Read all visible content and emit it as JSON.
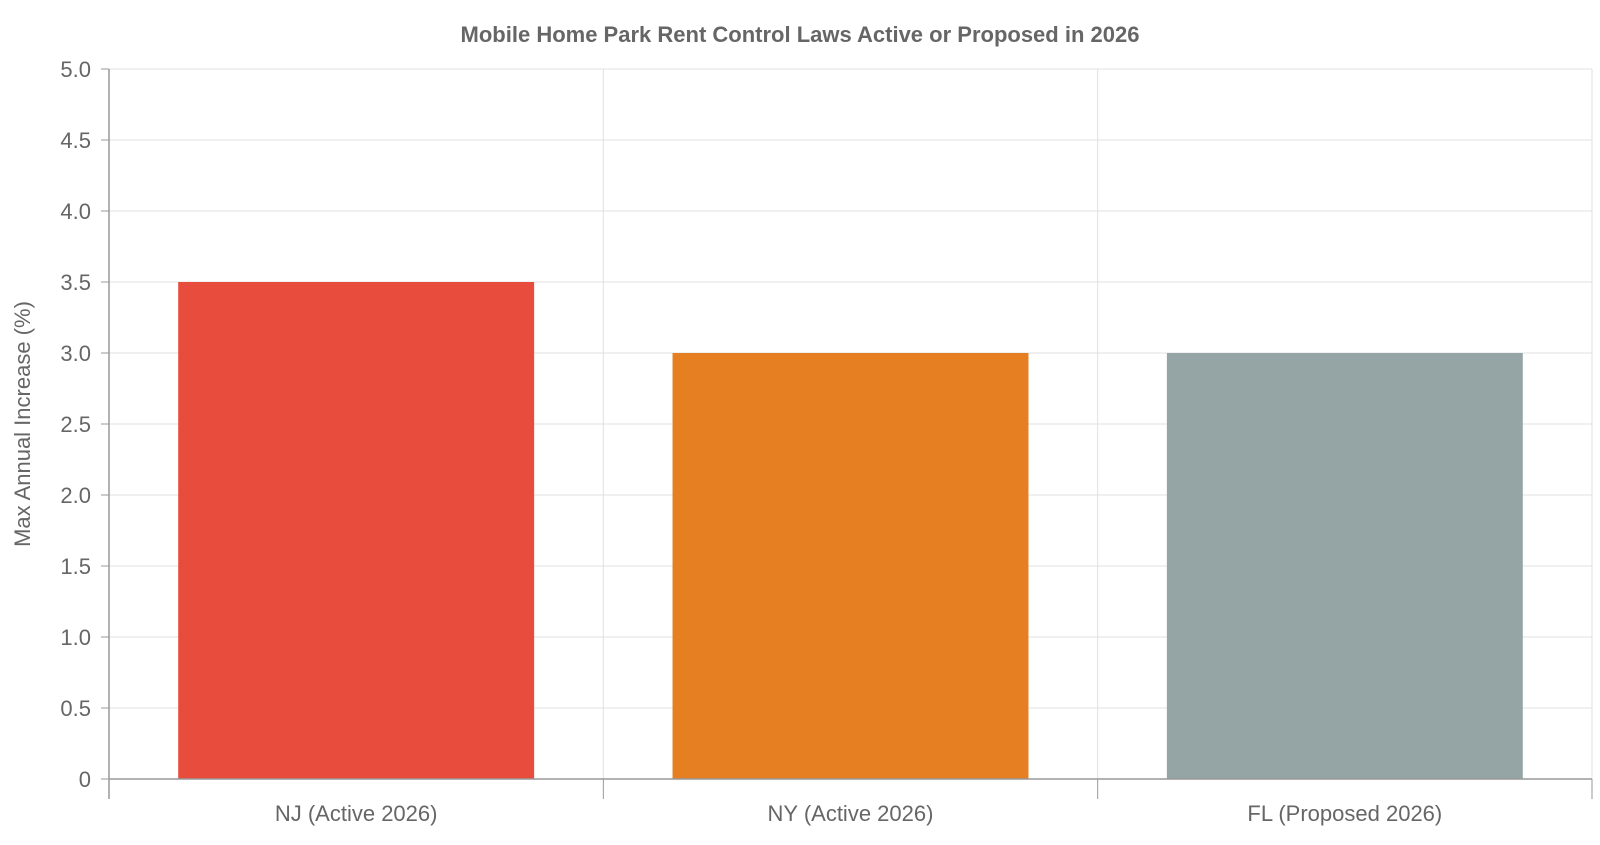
{
  "chart_data": {
    "type": "bar",
    "title": "Mobile Home Park Rent Control Laws Active or Proposed in 2026",
    "xlabel": "",
    "ylabel": "Max Annual Increase (%)",
    "categories": [
      "NJ (Active 2026)",
      "NY (Active 2026)",
      "FL (Proposed 2026)"
    ],
    "values": [
      3.5,
      3.0,
      3.0
    ],
    "colors": [
      "#e74c3c",
      "#e67e22",
      "#95a5a6"
    ],
    "ylim": [
      0,
      5
    ],
    "y_ticks": [
      "0",
      "0.5",
      "1.0",
      "1.5",
      "2.0",
      "2.5",
      "3.0",
      "3.5",
      "4.0",
      "4.5",
      "5.0"
    ],
    "grid": true,
    "legend": "none"
  }
}
